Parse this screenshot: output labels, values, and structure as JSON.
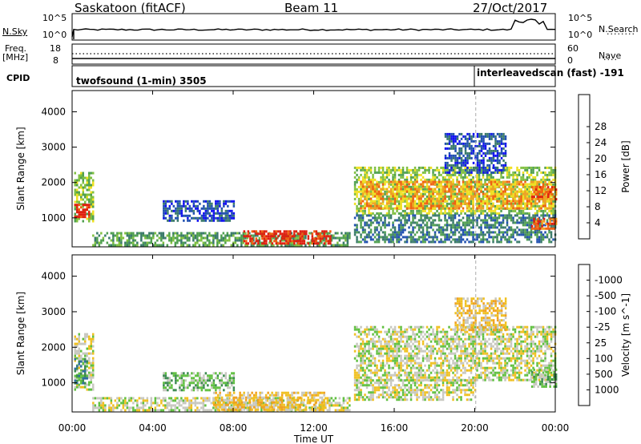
{
  "header": {
    "radar": "Saskatoon (fitACF)",
    "beam": "Beam 11",
    "date": "27/Oct/2017"
  },
  "status_panels": {
    "nsky_label": "N.Sky",
    "nsearch_label": "N.Search",
    "nsky_ticks": [
      "10^5",
      "10^0"
    ],
    "nsky_ticks_right": [
      "10^5",
      "10^0"
    ],
    "freq_label_1": "Freq.",
    "freq_label_2": "[MHz]",
    "freq_ticks": [
      "18",
      "8"
    ],
    "nave_label": "Nave",
    "nave_ticks": [
      "60",
      "0"
    ],
    "cpid_label": "CPID",
    "cpid_1": "twofsound (1-min) 3505",
    "cpid_2": "interleavedscan (fast) -191"
  },
  "chart_data": [
    {
      "type": "heatmap",
      "title": "",
      "ylabel": "Slant Range [km]",
      "xlabel": "",
      "x_ticks": [
        "00:00",
        "04:00",
        "08:00",
        "12:00",
        "16:00",
        "20:00",
        "00:00"
      ],
      "y_ticks": [
        1000,
        2000,
        3000,
        4000
      ],
      "ylim": [
        180,
        4600
      ],
      "xlim_hours": [
        0,
        24
      ],
      "colorbar": {
        "label": "Power [dB]",
        "ticks": [
          "4",
          "8",
          "12",
          "16",
          "20",
          "24",
          "28"
        ],
        "colors": [
          "#1010f0",
          "#2050b0",
          "#3a7a6a",
          "#50a050",
          "#80c040",
          "#f0e020",
          "#f0a020",
          "#f06010",
          "#e02010"
        ]
      },
      "regions": [
        {
          "t0": 0.1,
          "t1": 1.0,
          "r0": 900,
          "r1": 2300,
          "level": 4
        },
        {
          "t0": 0.1,
          "t1": 0.8,
          "r0": 1050,
          "r1": 1400,
          "level": 8
        },
        {
          "t0": 1.0,
          "t1": 13.8,
          "r0": 200,
          "r1": 600,
          "level": 3
        },
        {
          "t0": 8.5,
          "t1": 12.8,
          "r0": 300,
          "r1": 650,
          "level": 8
        },
        {
          "t0": 14.0,
          "t1": 24.0,
          "r0": 1150,
          "r1": 2450,
          "level": 4
        },
        {
          "t0": 14.3,
          "t1": 23.8,
          "r0": 1300,
          "r1": 2050,
          "level": 6
        },
        {
          "t0": 14.0,
          "t1": 24.0,
          "r0": 300,
          "r1": 1100,
          "level": 2
        },
        {
          "t0": 22.8,
          "t1": 24.0,
          "r0": 700,
          "r1": 1000,
          "level": 7
        },
        {
          "t0": 22.8,
          "t1": 24.0,
          "r0": 1500,
          "r1": 1900,
          "level": 7
        },
        {
          "t0": 4.5,
          "t1": 8.0,
          "r0": 900,
          "r1": 1500,
          "level": 1
        },
        {
          "t0": 18.5,
          "t1": 21.5,
          "r0": 2300,
          "r1": 3400,
          "level": 1
        }
      ]
    },
    {
      "type": "heatmap",
      "title": "",
      "ylabel": "Slant Range [km]",
      "xlabel": "Time UT",
      "x_ticks": [
        "00:00",
        "04:00",
        "08:00",
        "12:00",
        "16:00",
        "20:00",
        "00:00"
      ],
      "y_ticks": [
        1000,
        2000,
        3000,
        4000
      ],
      "ylim": [
        180,
        4600
      ],
      "xlim_hours": [
        0,
        24
      ],
      "colorbar": {
        "label": "Velocity [m s^-1]",
        "ticks": [
          "1000",
          "500",
          "100",
          "25",
          "-25",
          "-100",
          "-500",
          "-1000"
        ],
        "colors": [
          "#2040c0",
          "#2e6ea0",
          "#3c8a50",
          "#60c040",
          "#c8c8c0",
          "#f0c020",
          "#f0a020",
          "#f06010",
          "#e01010"
        ]
      },
      "regions": [
        {
          "t0": 0.1,
          "t1": 1.0,
          "r0": 800,
          "r1": 2400,
          "level": 4
        },
        {
          "t0": 0.1,
          "t1": 0.7,
          "r0": 1000,
          "r1": 1700,
          "level": 2
        },
        {
          "t0": 1.0,
          "t1": 13.8,
          "r0": 200,
          "r1": 600,
          "level": 4
        },
        {
          "t0": 7.0,
          "t1": 12.5,
          "r0": 250,
          "r1": 750,
          "level": 5
        },
        {
          "t0": 14.0,
          "t1": 24.0,
          "r0": 1100,
          "r1": 2600,
          "level": 4
        },
        {
          "t0": 14.0,
          "t1": 20.0,
          "r0": 500,
          "r1": 1100,
          "level": 4
        },
        {
          "t0": 22.8,
          "t1": 24.0,
          "r0": 900,
          "r1": 1400,
          "level": 3
        },
        {
          "t0": 4.5,
          "t1": 8.0,
          "r0": 800,
          "r1": 1300,
          "level": 3
        },
        {
          "t0": 19.0,
          "t1": 21.5,
          "r0": 2500,
          "r1": 3400,
          "level": 5
        }
      ]
    }
  ]
}
